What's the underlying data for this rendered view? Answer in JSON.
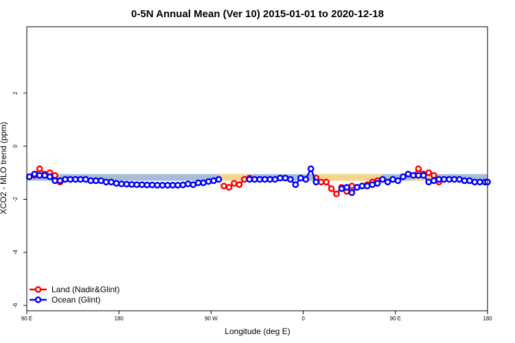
{
  "chart_data": {
    "type": "line",
    "title": "0-5N Annual Mean (Ver 10)   2015-01-01 to 2020-12-18",
    "xlabel": "Longitude (deg E)",
    "ylabel": "XCO2 - MLO trend (ppm)",
    "xlim": [
      90,
      540
    ],
    "ylim": [
      -6.2,
      4.5
    ],
    "x_ticks": [
      90,
      180,
      270,
      360,
      450,
      540
    ],
    "x_tick_labels": [
      "90 E",
      "180",
      "90 W",
      "0",
      "90 E",
      "180"
    ],
    "y_ticks": [
      2,
      0,
      -2,
      -4,
      -6
    ],
    "y_tick_labels": [
      "2",
      "0",
      "-2",
      "-4",
      "-6"
    ],
    "legend": {
      "position": "bottom-left",
      "entries": [
        {
          "label": "Land (Nadir&Glint)",
          "color": "#ff0000"
        },
        {
          "label": "Ocean (Glint)",
          "color": "#0000ff"
        }
      ]
    },
    "bands": [
      {
        "name": "ocean",
        "color": "#a9bcd6",
        "x": [
          90,
          540
        ],
        "y": [
          -1.3,
          -1.05
        ]
      },
      {
        "name": "land",
        "color": "#f5d58a",
        "x": [
          278,
          308
        ],
        "y": [
          -1.3,
          -1.05
        ]
      },
      {
        "name": "land",
        "color": "#f5d58a",
        "x": [
          372,
          437
        ],
        "y": [
          -1.3,
          -1.05
        ]
      },
      {
        "name": "land",
        "color": "#f5d58a",
        "x": [
          465,
          490
        ],
        "y": [
          -1.3,
          -1.05
        ]
      }
    ],
    "series": [
      {
        "name": "Land (Nadir&Glint)",
        "color": "#ff0000",
        "segments": [
          {
            "x": [
              97.5,
              102.5,
              107.5,
              112.5,
              117.5,
              122.5
            ],
            "y": [
              -1.1,
              -0.85,
              -1.05,
              -1.0,
              -1.1,
              -1.35
            ]
          },
          {
            "x": [
              282.5,
              287.5,
              292.5,
              297.5,
              302.5,
              307.5
            ],
            "y": [
              -1.5,
              -1.55,
              -1.4,
              -1.45,
              -1.25,
              -1.2
            ]
          },
          {
            "x": [
              372.5,
              377.5,
              382.5,
              387.5,
              392.5,
              397.5,
              402.5,
              407.5,
              412.5,
              417.5,
              422.5,
              427.5,
              432.5
            ],
            "y": [
              -1.2,
              -1.35,
              -1.35,
              -1.6,
              -1.8,
              -1.55,
              -1.7,
              -1.5,
              -1.55,
              -1.5,
              -1.45,
              -1.35,
              -1.3
            ]
          },
          {
            "x": [
              467.5,
              472.5,
              477.5,
              482.5,
              487.5,
              492.5
            ],
            "y": [
              -1.1,
              -0.85,
              -1.05,
              -1.0,
              -1.1,
              -1.35
            ]
          }
        ]
      },
      {
        "name": "Ocean (Glint)",
        "color": "#0000ff",
        "segments": [
          {
            "x": [
              92.5,
              97.5,
              102.5,
              107.5,
              112.5,
              117.5,
              122.5,
              127.5,
              132.5,
              137.5,
              142.5,
              147.5,
              152.5,
              157.5,
              162.5,
              167.5,
              172.5,
              177.5,
              182.5,
              187.5,
              192.5,
              197.5,
              202.5,
              207.5,
              212.5,
              217.5,
              222.5,
              227.5,
              232.5,
              237.5,
              242.5,
              247.5,
              252.5,
              257.5,
              262.5,
              267.5,
              272.5,
              277.5
            ],
            "y": [
              -1.15,
              -1.05,
              -1.1,
              -1.1,
              -1.15,
              -1.3,
              -1.3,
              -1.25,
              -1.25,
              -1.25,
              -1.25,
              -1.25,
              -1.3,
              -1.3,
              -1.3,
              -1.35,
              -1.35,
              -1.4,
              -1.42,
              -1.43,
              -1.44,
              -1.45,
              -1.45,
              -1.46,
              -1.46,
              -1.47,
              -1.47,
              -1.47,
              -1.47,
              -1.47,
              -1.46,
              -1.42,
              -1.45,
              -1.38,
              -1.38,
              -1.33,
              -1.3,
              -1.25
            ]
          },
          {
            "x": [
              307.5,
              312.5,
              317.5,
              322.5,
              327.5,
              332.5,
              337.5,
              342.5,
              347.5,
              352.5,
              357.5,
              362.5,
              367.5,
              372.5
            ],
            "y": [
              -1.25,
              -1.25,
              -1.25,
              -1.25,
              -1.25,
              -1.25,
              -1.2,
              -1.2,
              -1.25,
              -1.45,
              -1.2,
              -1.25,
              -0.85,
              -1.35
            ]
          },
          {
            "x": [
              397.5,
              402.5,
              407.5,
              412.5,
              417.5,
              422.5,
              427.5,
              432.5,
              437.5,
              442.5,
              447.5,
              452.5,
              457.5,
              462.5,
              467.5,
              472.5,
              477.5,
              482.5,
              487.5,
              492.5,
              497.5,
              502.5,
              507.5,
              512.5,
              517.5,
              522.5,
              527.5,
              532.5,
              537.5,
              540
            ],
            "y": [
              -1.6,
              -1.55,
              -1.75,
              -1.55,
              -1.5,
              -1.5,
              -1.45,
              -1.4,
              -1.25,
              -1.35,
              -1.25,
              -1.3,
              -1.15,
              -1.05,
              -1.1,
              -1.1,
              -1.1,
              -1.35,
              -1.3,
              -1.25,
              -1.25,
              -1.25,
              -1.25,
              -1.25,
              -1.3,
              -1.3,
              -1.35,
              -1.35,
              -1.35,
              -1.35
            ]
          }
        ]
      }
    ]
  }
}
